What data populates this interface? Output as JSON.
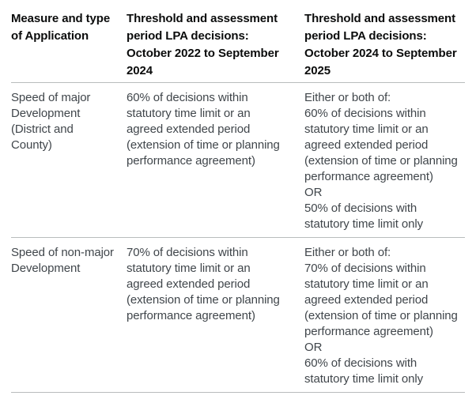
{
  "table": {
    "header": {
      "measure": "Measure and type\nof Application",
      "threshold_2022_2024": "Threshold and assessment\nperiod LPA decisions:\nOctober 2022 to September\n2024",
      "threshold_2024_2025": "Threshold and assessment\nperiod LPA decisions:\nOctober 2024 to September\n2025"
    },
    "rows": [
      {
        "measure": "Speed of major\nDevelopment\n(District and\nCounty)",
        "threshold_2022_2024": "60% of decisions within\nstatutory time limit or an\nagreed extended period\n(extension of time or planning\nperformance agreement)",
        "threshold_2024_2025": "Either or both of:\n60% of decisions within\nstatutory time limit or an\nagreed extended period\n(extension of time or planning\nperformance agreement)\nOR\n50% of decisions with\nstatutory time limit only"
      },
      {
        "measure": "Speed of non-major\nDevelopment",
        "threshold_2022_2024": "70% of decisions within\nstatutory time limit or an\nagreed extended period\n(extension of time or planning\nperformance agreement)",
        "threshold_2024_2025": "Either or both of:\n70% of decisions within\nstatutory time limit or an\nagreed extended period\n(extension of time or planning\nperformance agreement)\nOR\n60% of decisions with\nstatutory time limit only"
      }
    ]
  },
  "colors": {
    "header_text": "#0b0c0c",
    "body_text": "#40464b",
    "border": "#b9bcbd",
    "background": "#ffffff"
  }
}
